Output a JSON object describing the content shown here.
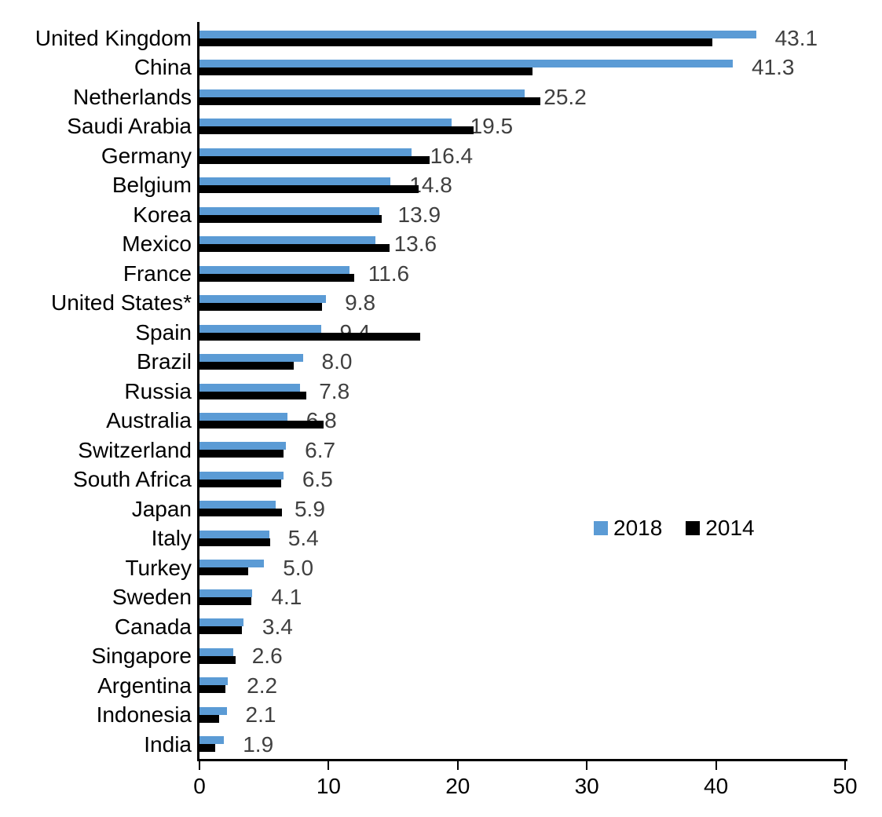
{
  "chart_data": {
    "type": "bar",
    "orientation": "horizontal",
    "title": "",
    "categories": [
      "United Kingdom",
      "China",
      "Netherlands",
      "Saudi Arabia",
      "Germany",
      "Belgium",
      "Korea",
      "Mexico",
      "France",
      "United States*",
      "Spain",
      "Brazil",
      "Russia",
      "Australia",
      "Switzerland",
      "South Africa",
      "Japan",
      "Italy",
      "Turkey",
      "Sweden",
      "Canada",
      "Singapore",
      "Argentina",
      "Indonesia",
      "India"
    ],
    "series": [
      {
        "name": "2018",
        "color": "#5B9BD5",
        "values": [
          43.1,
          41.3,
          25.2,
          19.5,
          16.4,
          14.8,
          13.9,
          13.6,
          11.6,
          9.8,
          9.4,
          8.0,
          7.8,
          6.8,
          6.7,
          6.5,
          5.9,
          5.4,
          5.0,
          4.1,
          3.4,
          2.6,
          2.2,
          2.1,
          1.9
        ],
        "data_labels": [
          "43.1",
          "41.3",
          "25.2",
          "19.5",
          "16.4",
          "14.8",
          "13.9",
          "13.6",
          "11.6",
          "9.8",
          "9.4",
          "8.0",
          "7.8",
          "6.8",
          "6.7",
          "6.5",
          "5.9",
          "5.4",
          "5.0",
          "4.1",
          "3.4",
          "2.6",
          "2.2",
          "2.1",
          "1.9"
        ]
      },
      {
        "name": "2014",
        "color": "#000000",
        "values": [
          39.7,
          25.8,
          26.4,
          21.2,
          17.8,
          17.0,
          14.1,
          14.7,
          12.0,
          9.5,
          17.1,
          7.3,
          8.3,
          9.6,
          6.5,
          6.3,
          6.4,
          5.5,
          3.8,
          4.0,
          3.3,
          2.8,
          2.0,
          1.5,
          1.2
        ]
      }
    ],
    "data_labels_source": "2018",
    "xlim": [
      0,
      50
    ],
    "x_ticks": [
      "0",
      "10",
      "20",
      "30",
      "40",
      "50"
    ],
    "grid": false,
    "legend": [
      "2018",
      "2014"
    ],
    "legend_position": "middle-right",
    "value_label_color": "#404040",
    "axis_color": "#000000"
  }
}
